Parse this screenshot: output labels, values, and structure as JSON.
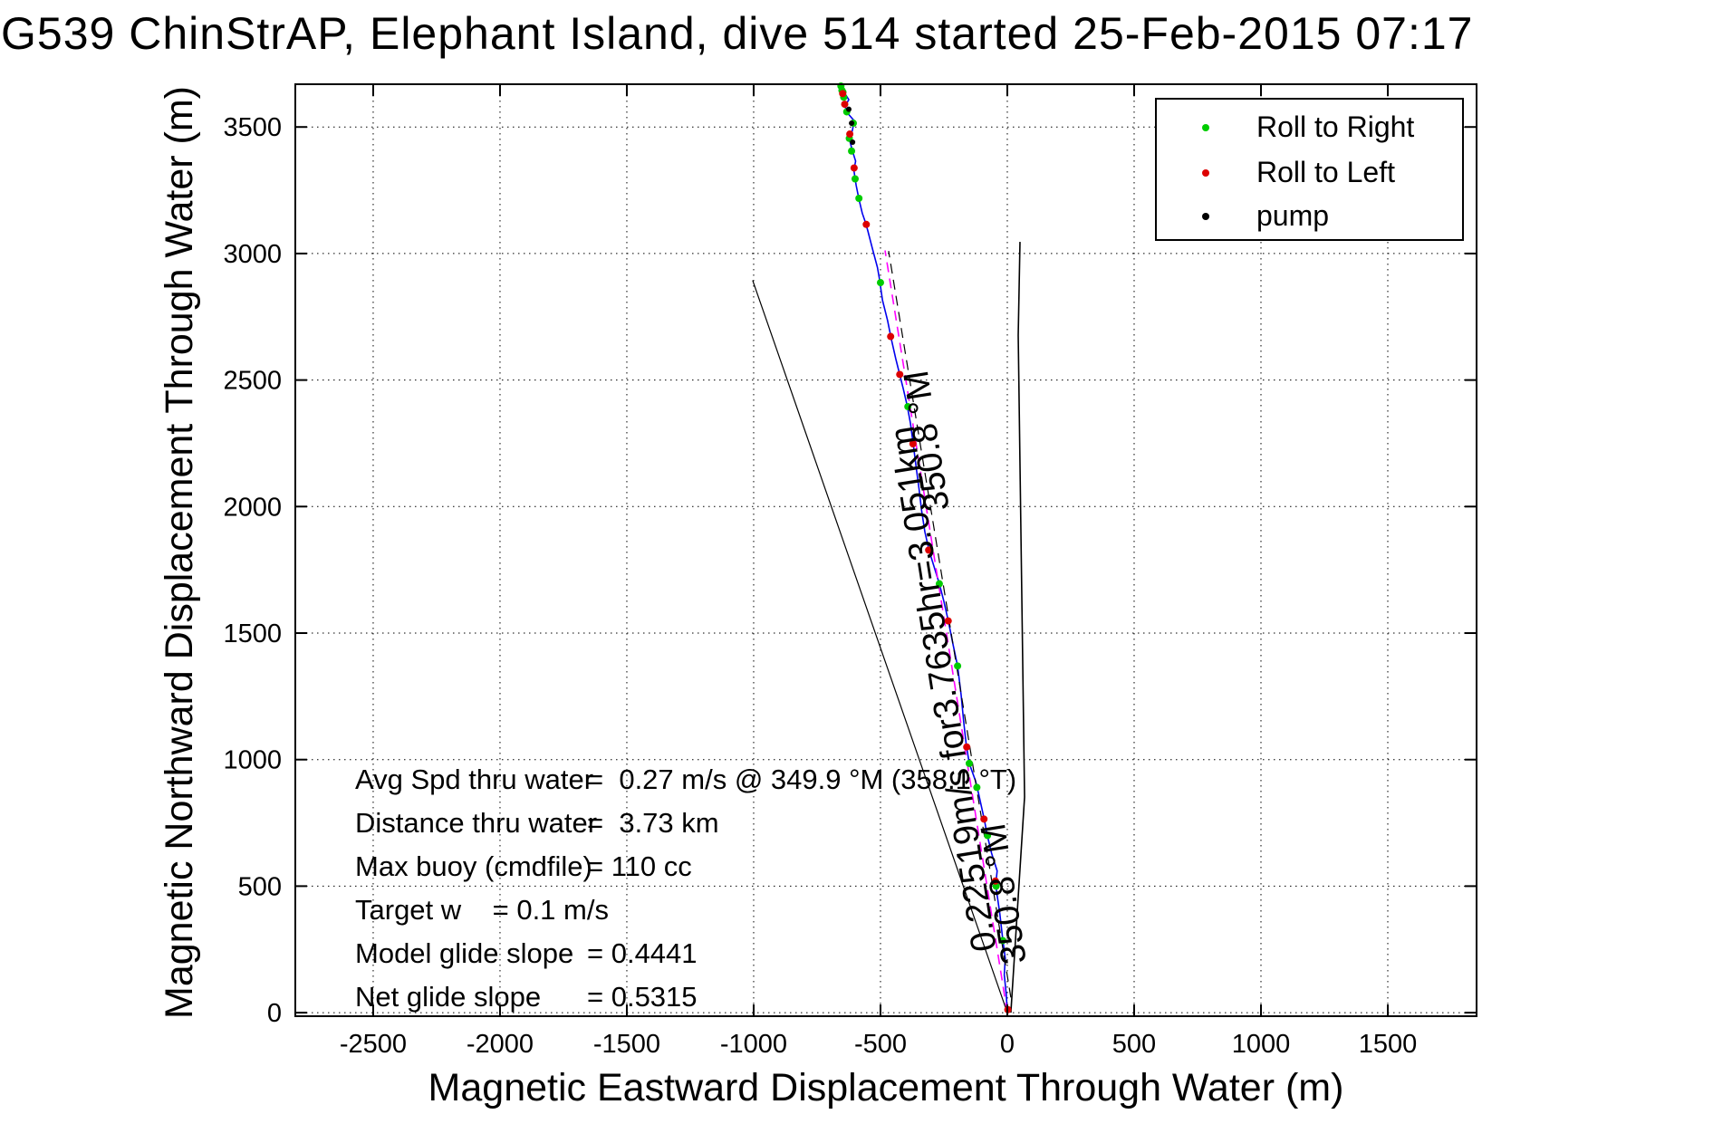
{
  "title": "G539 ChinStrAP, Elephant Island, dive 514 started 25-Feb-2015 07:17",
  "axes": {
    "xlabel": "Magnetic Eastward Displacement Through Water (m)",
    "ylabel": "Magnetic Northward Displacement Through Water (m)",
    "x_ticks": [
      -2500,
      -2000,
      -1500,
      -1000,
      -500,
      0,
      500,
      1000,
      1500
    ],
    "y_ticks": [
      0,
      500,
      1000,
      1500,
      2000,
      2500,
      3000,
      3500
    ],
    "xlim": [
      -2807,
      1850
    ],
    "ylim": [
      -14,
      3669
    ],
    "grid": "dotted"
  },
  "legend": {
    "items": [
      {
        "label": "Roll to Right",
        "color": "#00CC00"
      },
      {
        "label": "Roll to Left",
        "color": "#DD0000"
      },
      {
        "label": "pump",
        "color": "#000000"
      }
    ]
  },
  "stats": {
    "rows": [
      {
        "label": "Avg Spd thru water",
        "value": "=  0.27 m/s @ 349.9 °M (358.1 °T)"
      },
      {
        "label": "Distance thru water",
        "value": "=  3.73 km"
      },
      {
        "label": "Max buoy (cmdfile)",
        "value": "= 110 cc"
      },
      {
        "label": "Target w    = 0.1 m/s",
        "value": ""
      },
      {
        "label": "Model glide slope",
        "value": "= 0.4441"
      },
      {
        "label": "Net glide slope",
        "value": "= 0.5315"
      }
    ]
  },
  "chart_data": {
    "type": "line",
    "title": "G539 ChinStrAP, Elephant Island, dive 514 started 25-Feb-2015 07:17",
    "xlabel": "Magnetic Eastward Displacement Through Water (m)",
    "ylabel": "Magnetic Northward Displacement Through Water (m)",
    "xlim": [
      -2807,
      1850
    ],
    "ylim": [
      -14,
      3669
    ],
    "grid": true,
    "legend_position": "top-right",
    "series": [
      {
        "name": "track-through-water",
        "color": "#0000EE",
        "style": "solid",
        "width": 1.6,
        "points": [
          [
            0,
            0
          ],
          [
            -4,
            70
          ],
          [
            -12,
            150
          ],
          [
            -8,
            215
          ],
          [
            -18,
            290
          ],
          [
            -30,
            395
          ],
          [
            -46,
            505
          ],
          [
            -40,
            560
          ],
          [
            -62,
            630
          ],
          [
            -80,
            705
          ],
          [
            -90,
            760
          ],
          [
            -112,
            860
          ],
          [
            -125,
            915
          ],
          [
            -150,
            985
          ],
          [
            -162,
            1060
          ],
          [
            -172,
            1150
          ],
          [
            -182,
            1255
          ],
          [
            -196,
            1370
          ],
          [
            -214,
            1455
          ],
          [
            -232,
            1545
          ],
          [
            -250,
            1625
          ],
          [
            -268,
            1695
          ],
          [
            -288,
            1760
          ],
          [
            -308,
            1825
          ],
          [
            -325,
            1900
          ],
          [
            -338,
            1985
          ],
          [
            -348,
            2070
          ],
          [
            -360,
            2160
          ],
          [
            -370,
            2240
          ],
          [
            -382,
            2330
          ],
          [
            -395,
            2400
          ],
          [
            -410,
            2465
          ],
          [
            -425,
            2525
          ],
          [
            -440,
            2585
          ],
          [
            -458,
            2665
          ],
          [
            -472,
            2735
          ],
          [
            -492,
            2815
          ],
          [
            -505,
            2905
          ],
          [
            -512,
            2945
          ],
          [
            -532,
            3020
          ],
          [
            -550,
            3090
          ],
          [
            -560,
            3125
          ],
          [
            -572,
            3160
          ],
          [
            -585,
            3215
          ],
          [
            -596,
            3270
          ],
          [
            -605,
            3330
          ],
          [
            -598,
            3365
          ],
          [
            -612,
            3410
          ],
          [
            -622,
            3450
          ],
          [
            -610,
            3490
          ],
          [
            -604,
            3525
          ],
          [
            -630,
            3555
          ],
          [
            -640,
            3582
          ],
          [
            -625,
            3608
          ],
          [
            -642,
            3635
          ],
          [
            -655,
            3655
          ],
          [
            -657,
            3669
          ]
        ]
      },
      {
        "name": "straight-course-magenta",
        "color": "#FF00FF",
        "style": "dashed",
        "width": 1.6,
        "points": [
          [
            0,
            0
          ],
          [
            -482,
            3012
          ]
        ]
      },
      {
        "name": "straight-course-black",
        "color": "#000000",
        "style": "dashed",
        "width": 1.2,
        "points": [
          [
            14,
            60
          ],
          [
            -468,
            3010
          ]
        ]
      },
      {
        "name": "bearing-fan-left",
        "color": "#000000",
        "style": "solid",
        "width": 1.2,
        "points": [
          [
            0,
            0
          ],
          [
            -1004,
            2894
          ]
        ]
      },
      {
        "name": "north-reference-line",
        "color": "#000000",
        "style": "solid",
        "width": 1.6,
        "points": [
          [
            14,
            0
          ],
          [
            68,
            852
          ],
          [
            43,
            2677
          ],
          [
            50,
            3046
          ]
        ]
      }
    ],
    "markers": [
      {
        "name": "roll-to-right",
        "color": "#00CC00",
        "size": 4,
        "points": [
          [
            -18,
            285
          ],
          [
            -44,
            500
          ],
          [
            -78,
            700
          ],
          [
            -120,
            890
          ],
          [
            -150,
            985
          ],
          [
            -196,
            1370
          ],
          [
            -268,
            1695
          ],
          [
            -392,
            2395
          ],
          [
            -500,
            2885
          ],
          [
            -585,
            3218
          ],
          [
            -600,
            3295
          ],
          [
            -614,
            3405
          ],
          [
            -623,
            3455
          ],
          [
            -607,
            3515
          ],
          [
            -633,
            3560
          ],
          [
            -645,
            3618
          ],
          [
            -652,
            3645
          ],
          [
            -648,
            3638
          ],
          [
            -656,
            3662
          ]
        ]
      },
      {
        "name": "roll-to-left",
        "color": "#DD0000",
        "size": 4,
        "points": [
          [
            2,
            12
          ],
          [
            -47,
            520
          ],
          [
            -92,
            765
          ],
          [
            -160,
            1050
          ],
          [
            -233,
            1548
          ],
          [
            -310,
            1828
          ],
          [
            -372,
            2248
          ],
          [
            -424,
            2522
          ],
          [
            -460,
            2672
          ],
          [
            -556,
            3115
          ],
          [
            -604,
            3338
          ],
          [
            -621,
            3472
          ],
          [
            -641,
            3590
          ],
          [
            -649,
            3632
          ]
        ]
      },
      {
        "name": "pump",
        "color": "#000000",
        "size": 3,
        "points": [
          [
            -625,
            3570
          ],
          [
            -614,
            3515
          ],
          [
            -610,
            3440
          ]
        ]
      }
    ],
    "annotations": [
      {
        "name": "track-speed-label",
        "text": "0.22519m/s for3.7635hr=3.051km",
        "x": -43,
        "y": 250,
        "rotate": -99,
        "size": 39
      },
      {
        "name": "bearing-label-lower",
        "text": "350.8 °M",
        "x": 75,
        "y": 200,
        "rotate": -99,
        "size": 39
      },
      {
        "name": "bearing-label-upper",
        "text": "350.8 °M",
        "x": -229,
        "y": 1990,
        "rotate": -99,
        "size": 39
      }
    ]
  }
}
